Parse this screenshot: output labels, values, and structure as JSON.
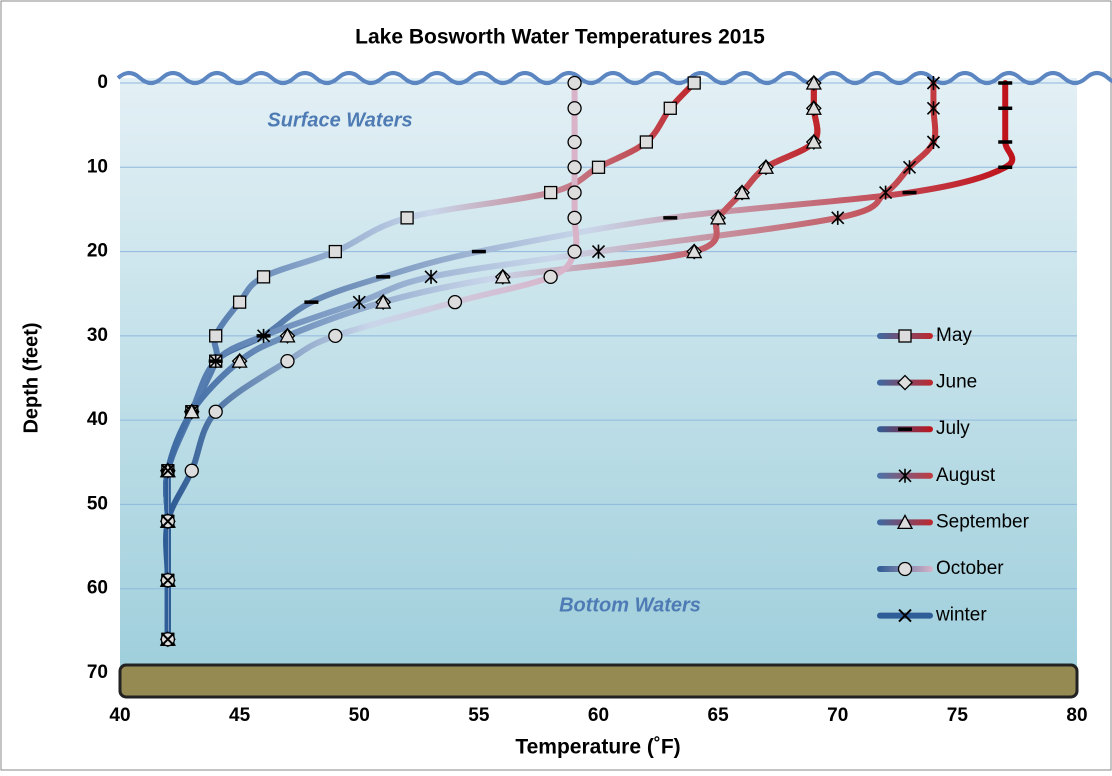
{
  "chart_data": {
    "type": "line",
    "title": "Lake Bosworth Water Temperatures 2015",
    "x_label": "Temperature  (˚F)",
    "y_label": "Depth (feet)",
    "annotations": [
      "Surface Waters",
      "Bottom Waters"
    ],
    "xlim": [
      40,
      80
    ],
    "xticks": [
      40,
      45,
      50,
      55,
      60,
      65,
      70,
      75,
      80
    ],
    "ylim": [
      0,
      70
    ],
    "yticks": [
      0,
      10,
      20,
      30,
      40,
      50,
      60,
      70
    ],
    "y_inverted": true,
    "grid": true,
    "series": [
      {
        "name": "May",
        "marker": "square",
        "colors": [
          "#3d6aa3",
          "#c0272d"
        ],
        "x": [
          64,
          63,
          62,
          60,
          58,
          52,
          49,
          46,
          45,
          44,
          44,
          43,
          42,
          42,
          42,
          42
        ],
        "y": [
          0,
          3,
          7,
          10,
          13,
          16,
          20,
          23,
          26,
          30,
          33,
          39,
          46,
          52,
          59,
          66
        ]
      },
      {
        "name": "June",
        "marker": "diamond",
        "colors": [
          "#3d6aa3",
          "#c0272d"
        ],
        "x": [
          69,
          69,
          69,
          67,
          66,
          65,
          64,
          56,
          51,
          47,
          45,
          43,
          42,
          42,
          42,
          42
        ],
        "y": [
          0,
          3,
          7,
          10,
          13,
          16,
          20,
          23,
          26,
          30,
          33,
          39,
          46,
          52,
          59,
          66
        ]
      },
      {
        "name": "July",
        "marker": "dash",
        "colors": [
          "#2f5d97",
          "#c0141c"
        ],
        "x": [
          77,
          77,
          77,
          77,
          73,
          63,
          55,
          51,
          48,
          46,
          44,
          43,
          42,
          42,
          42,
          42
        ],
        "y": [
          0,
          3,
          7,
          10,
          13,
          16,
          20,
          23,
          26,
          30,
          33,
          39,
          46,
          52,
          59,
          66
        ]
      },
      {
        "name": "August",
        "marker": "star",
        "colors": [
          "#4a74aa",
          "#c23a40"
        ],
        "x": [
          74,
          74,
          74,
          73,
          72,
          70,
          60,
          53,
          50,
          46,
          44,
          43,
          42,
          42,
          42,
          42
        ],
        "y": [
          0,
          3,
          7,
          10,
          13,
          16,
          20,
          23,
          26,
          30,
          33,
          39,
          46,
          52,
          59,
          66
        ]
      },
      {
        "name": "September",
        "marker": "triangle",
        "colors": [
          "#3d6aa3",
          "#c0272d"
        ],
        "x": [
          69,
          69,
          69,
          67,
          66,
          65,
          64,
          56,
          51,
          47,
          45,
          43,
          42,
          42,
          42,
          42
        ],
        "y": [
          0,
          3,
          7,
          10,
          13,
          16,
          20,
          23,
          26,
          30,
          33,
          39,
          46,
          52,
          59,
          66
        ]
      },
      {
        "name": "October",
        "marker": "circle",
        "colors": [
          "#2c5a93",
          "#d9b3c8"
        ],
        "x": [
          59,
          59,
          59,
          59,
          59,
          59,
          59,
          58,
          54,
          49,
          47,
          44,
          43,
          42,
          42,
          42
        ],
        "y": [
          0,
          3,
          7,
          10,
          13,
          16,
          20,
          23,
          26,
          30,
          33,
          39,
          46,
          52,
          59,
          66
        ]
      },
      {
        "name": "winter",
        "marker": "x",
        "colors": [
          "#2f5d97",
          "#2f5d97"
        ],
        "x": [
          42,
          42,
          42,
          42
        ],
        "y": [
          46,
          52,
          59,
          66
        ]
      }
    ]
  }
}
